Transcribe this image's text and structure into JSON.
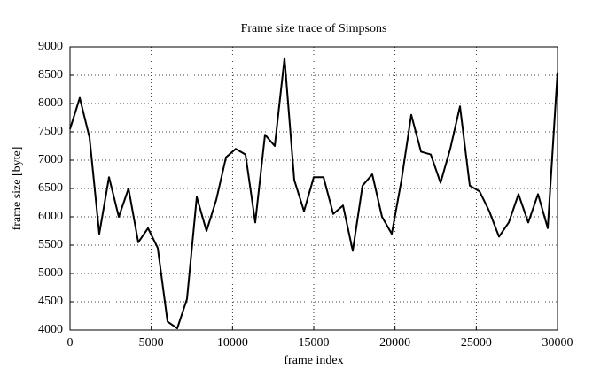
{
  "chart_data": {
    "type": "line",
    "title": "Frame size trace of Simpsons",
    "x_label": "frame index",
    "y_label": "frame size [byte]",
    "x": [
      0,
      600,
      1200,
      1800,
      2400,
      3000,
      3600,
      4200,
      4800,
      5400,
      6000,
      6600,
      7200,
      7800,
      8400,
      9000,
      9600,
      10200,
      10800,
      11400,
      12000,
      12600,
      13200,
      13800,
      14400,
      15000,
      15600,
      16200,
      16800,
      17400,
      18000,
      18600,
      19200,
      19800,
      20400,
      21000,
      21600,
      22200,
      22800,
      23400,
      24000,
      24600,
      25200,
      25800,
      26400,
      27000,
      27600,
      28200,
      28800,
      29400,
      30000
    ],
    "values": [
      7550,
      8100,
      7400,
      5700,
      6700,
      6000,
      6500,
      5550,
      5800,
      5450,
      4150,
      4030,
      4550,
      6350,
      5750,
      6300,
      7050,
      7200,
      7100,
      5900,
      7450,
      7250,
      8800,
      6650,
      6100,
      6700,
      6700,
      6050,
      6200,
      5400,
      6550,
      6750,
      6000,
      5700,
      6650,
      7800,
      7150,
      7100,
      6600,
      7200,
      7950,
      6550,
      6450,
      6100,
      5650,
      5900,
      6400,
      5900,
      6400,
      5800,
      8550
    ],
    "color": "#000000",
    "xlim": [
      0,
      30000
    ],
    "ylim": [
      4000,
      9000
    ],
    "xticks": [
      0,
      5000,
      10000,
      15000,
      20000,
      25000,
      30000
    ],
    "yticks": [
      4000,
      4500,
      5000,
      5500,
      6000,
      6500,
      7000,
      7500,
      8000,
      8500,
      9000
    ],
    "grid": true
  }
}
